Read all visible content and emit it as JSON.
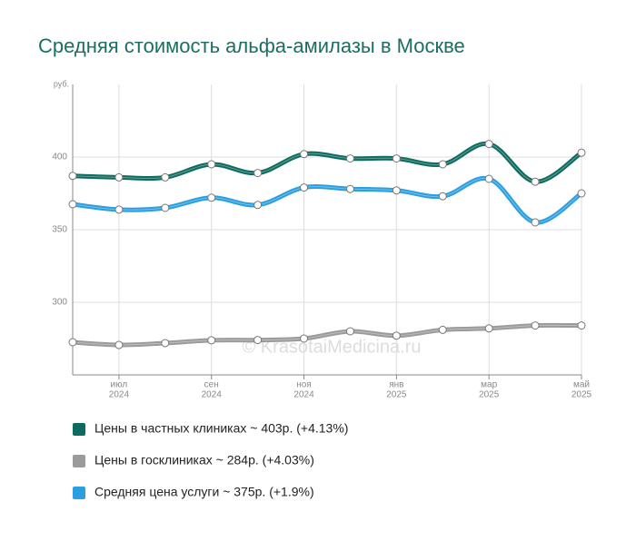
{
  "chart_data": {
    "type": "line",
    "title": "Средняя стоимость альфа-амилазы в Москве",
    "y_label": "руб.",
    "watermark": "© KrasotaiMedicina.ru",
    "categories": [
      null,
      [
        "июл",
        "2024"
      ],
      null,
      [
        "сен",
        "2024"
      ],
      null,
      [
        "ноя",
        "2024"
      ],
      null,
      [
        "янв",
        "2025"
      ],
      null,
      [
        "мар",
        "2025"
      ],
      null,
      [
        "май",
        "2025"
      ]
    ],
    "series": [
      {
        "name": "Цены в частных клиниках ~ 403р. (+4.13%)",
        "color": "#0e6b60",
        "values": [
          387,
          386,
          386,
          395,
          389,
          402,
          399,
          399,
          395,
          409,
          383,
          403
        ]
      },
      {
        "name": "Цены в госклиниках ~ 284p. (+4.03%)",
        "color": "#9b9b9b",
        "values": [
          272.5,
          270.6,
          271.9,
          273.8,
          274,
          275,
          280,
          277,
          281,
          282,
          284,
          284
        ]
      },
      {
        "name": "Средняя цена услуги ~ 375р. (+1.9%)",
        "color": "#2b9fe0",
        "values": [
          367.5,
          363.8,
          365,
          372,
          367,
          379,
          378,
          377,
          373,
          385,
          355,
          375
        ]
      }
    ],
    "ylim": [
      250,
      450
    ],
    "yticks": [
      300,
      350,
      400
    ],
    "grid": true,
    "legend": "bottom"
  }
}
